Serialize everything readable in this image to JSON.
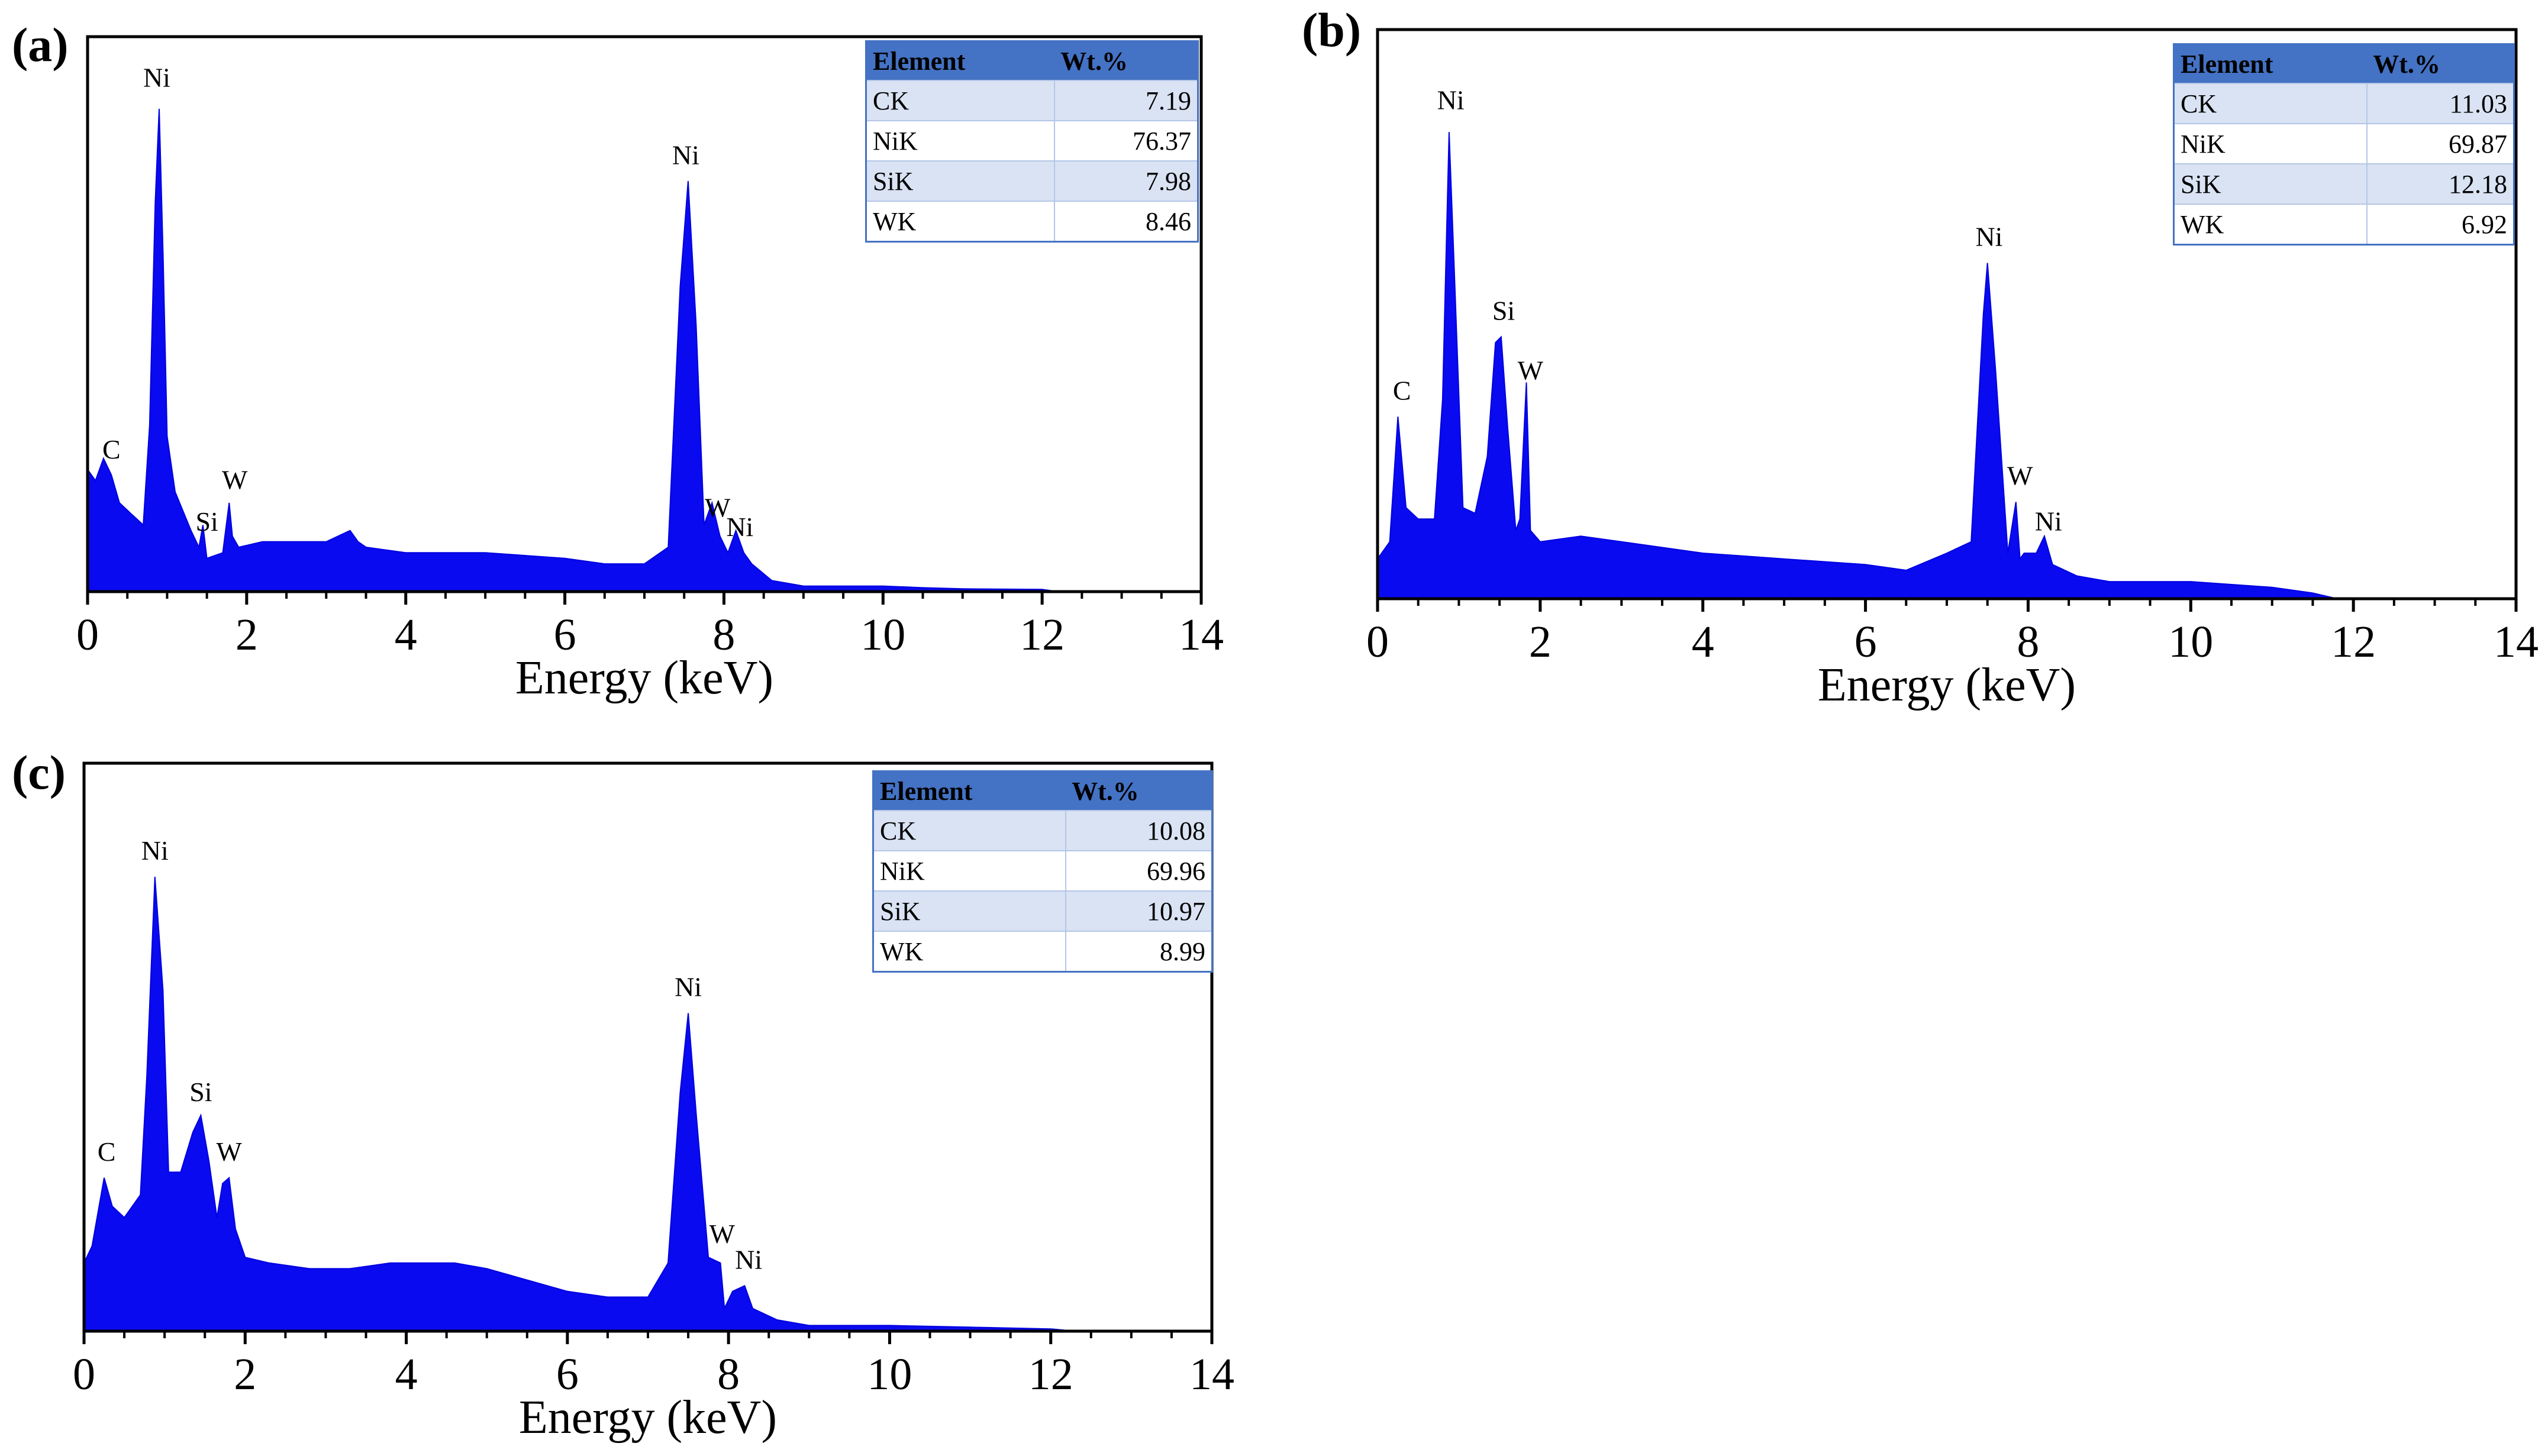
{
  "chart_data": [
    {
      "id": "a",
      "panel_label": "(a)",
      "type": "area",
      "xlabel": "Energy (keV)",
      "ylabel": "",
      "xlim": [
        0,
        14
      ],
      "ylim": [
        0,
        100
      ],
      "xticks": [
        "0",
        "2",
        "4",
        "6",
        "8",
        "10",
        "12",
        "14"
      ],
      "x": [
        0,
        0.1,
        0.2,
        0.3,
        0.4,
        0.55,
        0.7,
        0.78,
        0.85,
        0.9,
        0.95,
        1.0,
        1.1,
        1.3,
        1.4,
        1.45,
        1.5,
        1.7,
        1.78,
        1.82,
        1.9,
        2.2,
        3.0,
        3.3,
        3.4,
        3.5,
        4.0,
        5.0,
        6.0,
        6.5,
        7.0,
        7.3,
        7.45,
        7.55,
        7.65,
        7.75,
        7.85,
        7.95,
        8.05,
        8.15,
        8.25,
        8.35,
        8.6,
        9.0,
        10.0,
        10.5,
        11.0,
        12.0,
        12.2
      ],
      "y": [
        22,
        20,
        24,
        21,
        16,
        14,
        12,
        30,
        70,
        87,
        60,
        28,
        18,
        11,
        8,
        12,
        6,
        7,
        16,
        10,
        8,
        9,
        9,
        11,
        9,
        8,
        7,
        7,
        6,
        5,
        5,
        8,
        55,
        74,
        48,
        12,
        16,
        10,
        7,
        11,
        7,
        5,
        2,
        1,
        1,
        0.7,
        0.5,
        0.4,
        0
      ],
      "peaks": [
        {
          "label": "Ni",
          "x": 0.87,
          "y": 91
        },
        {
          "label": "C",
          "x": 0.3,
          "y": 24
        },
        {
          "label": "Si",
          "x": 1.5,
          "y": 11
        },
        {
          "label": "W",
          "x": 1.85,
          "y": 18.5
        },
        {
          "label": "Ni",
          "x": 7.52,
          "y": 77
        },
        {
          "label": "W",
          "x": 7.92,
          "y": 13.5
        },
        {
          "label": "Ni",
          "x": 8.2,
          "y": 10
        }
      ],
      "table": {
        "headers": [
          "Element",
          "Wt.%"
        ],
        "rows": [
          [
            "CK",
            "7.19"
          ],
          [
            "NiK",
            "76.37"
          ],
          [
            "SiK",
            "7.98"
          ],
          [
            "WK",
            "8.46"
          ]
        ]
      }
    },
    {
      "id": "b",
      "panel_label": "(b)",
      "type": "area",
      "xlabel": "Energy (keV)",
      "ylabel": "",
      "xlim": [
        0,
        14
      ],
      "ylim": [
        0,
        100
      ],
      "xticks": [
        "0",
        "2",
        "4",
        "6",
        "8",
        "10",
        "12",
        "14"
      ],
      "x": [
        0,
        0.15,
        0.25,
        0.35,
        0.5,
        0.7,
        0.8,
        0.88,
        0.95,
        1.05,
        1.2,
        1.35,
        1.45,
        1.52,
        1.6,
        1.7,
        1.75,
        1.83,
        1.88,
        2.0,
        2.5,
        3.0,
        4.0,
        5.0,
        6.0,
        6.5,
        7.0,
        7.3,
        7.45,
        7.5,
        7.6,
        7.75,
        7.85,
        7.9,
        7.95,
        8.1,
        8.2,
        8.3,
        8.6,
        9.0,
        10.0,
        11.0,
        11.5,
        11.8
      ],
      "y": [
        7,
        10,
        32,
        16,
        14,
        14,
        35,
        82,
        55,
        16,
        15,
        25,
        45,
        46,
        30,
        12,
        14,
        38,
        12,
        10,
        11,
        10,
        8,
        7,
        6,
        5,
        8,
        10,
        50,
        59,
        40,
        8,
        17,
        7,
        8,
        8,
        11,
        6,
        4,
        3,
        3,
        2,
        1,
        0
      ],
      "peaks": [
        {
          "label": "Ni",
          "x": 0.9,
          "y": 86
        },
        {
          "label": "C",
          "x": 0.3,
          "y": 35
        },
        {
          "label": "Si",
          "x": 1.55,
          "y": 49
        },
        {
          "label": "W",
          "x": 1.88,
          "y": 38.5
        },
        {
          "label": "Ni",
          "x": 7.52,
          "y": 62
        },
        {
          "label": "W",
          "x": 7.9,
          "y": 20
        },
        {
          "label": "Ni",
          "x": 8.25,
          "y": 12
        }
      ],
      "table": {
        "headers": [
          "Element",
          "Wt.%"
        ],
        "rows": [
          [
            "CK",
            "11.03"
          ],
          [
            "NiK",
            "69.87"
          ],
          [
            "SiK",
            "12.18"
          ],
          [
            "WK",
            "6.92"
          ]
        ]
      }
    },
    {
      "id": "c",
      "panel_label": "(c)",
      "type": "area",
      "xlabel": "Energy (keV)",
      "ylabel": "",
      "xlim": [
        0,
        14
      ],
      "ylim": [
        0,
        100
      ],
      "xticks": [
        "0",
        "2",
        "4",
        "6",
        "8",
        "10",
        "12",
        "14"
      ],
      "x": [
        0,
        0.1,
        0.25,
        0.35,
        0.5,
        0.7,
        0.78,
        0.88,
        0.98,
        1.05,
        1.2,
        1.35,
        1.45,
        1.55,
        1.65,
        1.72,
        1.8,
        1.88,
        2.0,
        2.3,
        2.8,
        3.3,
        3.8,
        4.2,
        4.6,
        5.0,
        5.5,
        6.0,
        6.5,
        7.0,
        7.25,
        7.4,
        7.5,
        7.6,
        7.75,
        7.9,
        7.95,
        8.05,
        8.2,
        8.3,
        8.6,
        9.0,
        10.0,
        11.0,
        12.0,
        12.3
      ],
      "y": [
        12,
        15,
        27,
        22,
        20,
        24,
        45,
        80,
        60,
        28,
        28,
        35,
        38,
        30,
        20,
        26,
        27,
        18,
        13,
        12,
        11,
        11,
        12,
        12,
        12,
        11,
        9,
        7,
        6,
        6,
        12,
        42,
        56,
        38,
        13,
        12,
        4,
        7,
        8,
        4,
        2,
        1,
        1,
        0.7,
        0.4,
        0
      ],
      "peaks": [
        {
          "label": "Ni",
          "x": 0.88,
          "y": 83
        },
        {
          "label": "C",
          "x": 0.28,
          "y": 30
        },
        {
          "label": "Si",
          "x": 1.45,
          "y": 40.5
        },
        {
          "label": "W",
          "x": 1.8,
          "y": 30
        },
        {
          "label": "Ni",
          "x": 7.5,
          "y": 59
        },
        {
          "label": "W",
          "x": 7.92,
          "y": 15.5
        },
        {
          "label": "Ni",
          "x": 8.25,
          "y": 11
        }
      ],
      "table": {
        "headers": [
          "Element",
          "Wt.%"
        ],
        "rows": [
          [
            "CK",
            "10.08"
          ],
          [
            "NiK",
            "69.96"
          ],
          [
            "SiK",
            "10.97"
          ],
          [
            "WK",
            "8.99"
          ]
        ]
      }
    }
  ]
}
